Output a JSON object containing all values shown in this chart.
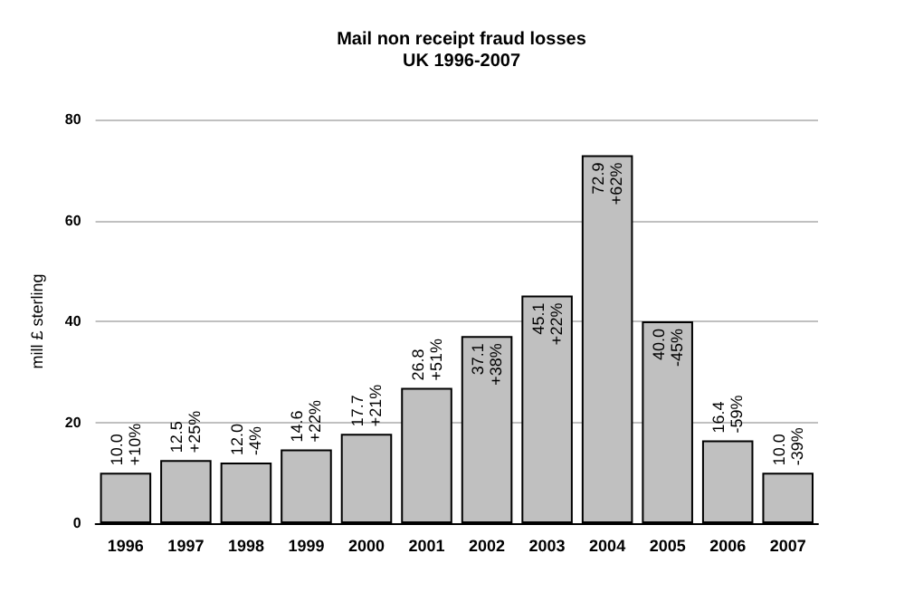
{
  "chart_data": {
    "type": "bar",
    "title": "Mail non receipt fraud losses",
    "subtitle": "UK 1996-2007",
    "ylabel": "mill £ sterling",
    "categories": [
      "1996",
      "1997",
      "1998",
      "1999",
      "2000",
      "2001",
      "2002",
      "2003",
      "2004",
      "2005",
      "2006",
      "2007"
    ],
    "values": [
      10.0,
      12.5,
      12.0,
      14.6,
      17.7,
      26.8,
      37.1,
      45.1,
      72.9,
      40.0,
      16.4,
      10.0
    ],
    "value_labels": [
      "10.0\n+10%",
      "12.5\n+25%",
      "12.0\n-4%",
      "14.6\n+22%",
      "17.7\n+21%",
      "26.8\n+51%",
      "37.1\n+38%",
      "45.1\n+22%",
      "72.9\n+62%",
      "40.0\n-45%",
      "16.4\n-59%",
      "10.0\n-39%"
    ],
    "color": "#c0c0c0",
    "ylim": [
      0,
      80
    ],
    "yticks": [
      0,
      20,
      40,
      60,
      80
    ],
    "grid": "y"
  }
}
